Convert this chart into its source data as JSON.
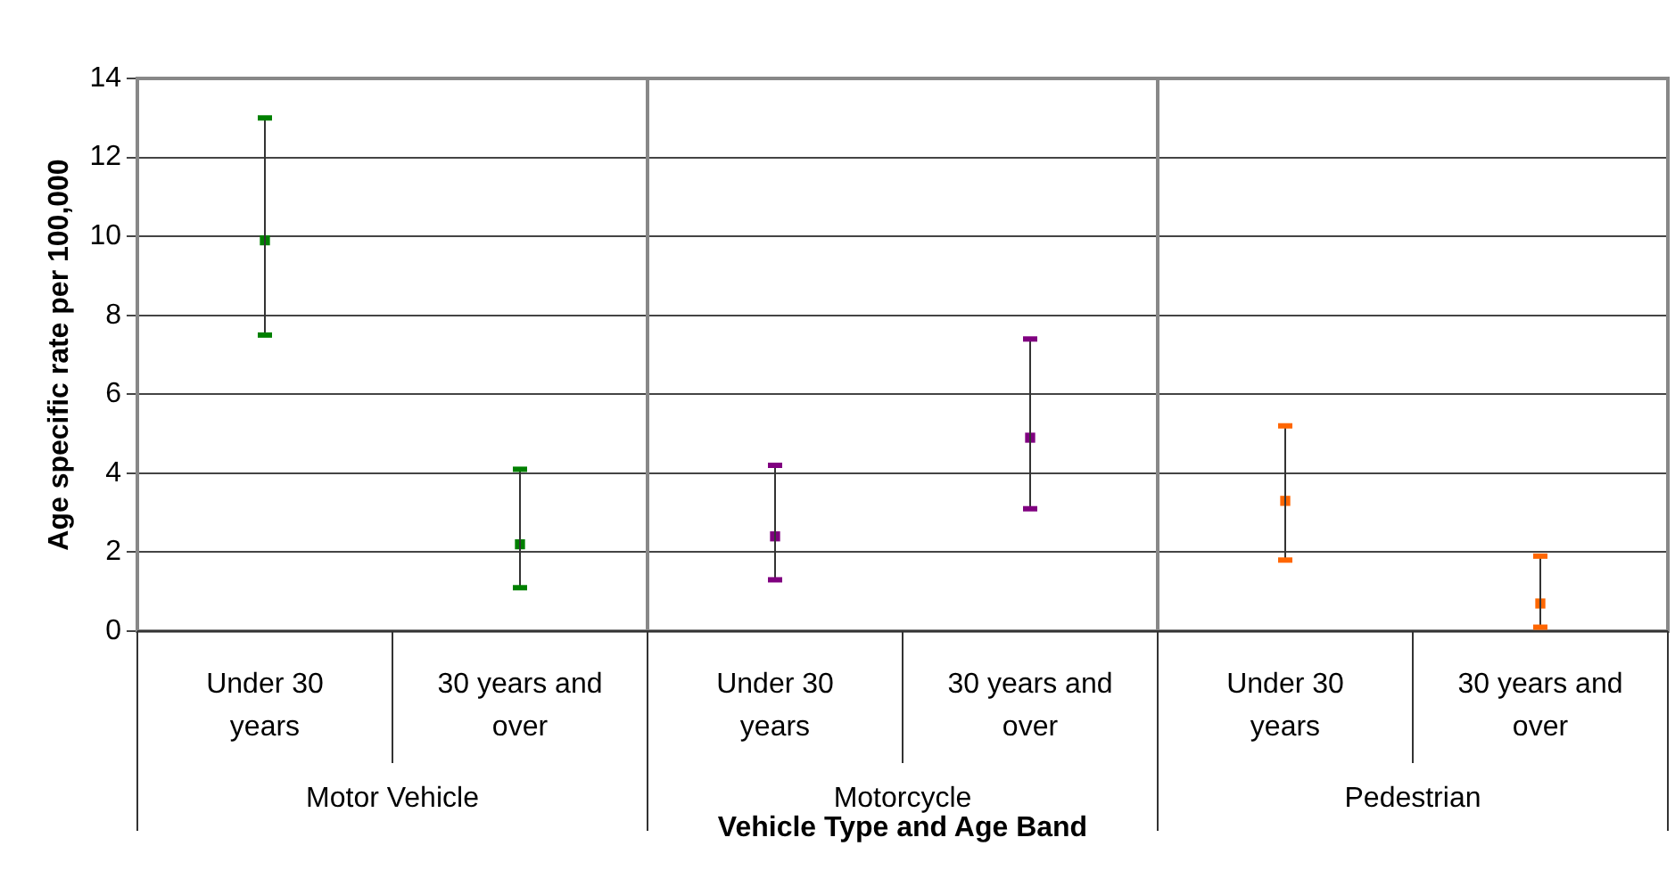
{
  "chart_data": {
    "type": "scatter",
    "xlabel": "Vehicle Type and Age Band",
    "ylabel": "Age specific rate per 100,000",
    "categories": [
      "Under 30 years",
      "30 years and over",
      "Under 30 years",
      "30 years and over",
      "Under 30 years",
      "30 years and over"
    ],
    "annotations": [
      "Motor Vehicle",
      "Motorcycle",
      "Pedestrian"
    ],
    "series": [
      {
        "colors": [
          "#008000",
          "#008000",
          "#800080",
          "#800080",
          "#ff6600",
          "#ff6600"
        ],
        "values": [
          9.9,
          2.2,
          2.4,
          4.9,
          3.3,
          0.7
        ],
        "errors": [
          [
            7.5,
            13.0
          ],
          [
            1.1,
            4.1
          ],
          [
            1.3,
            4.2
          ],
          [
            3.1,
            7.4
          ],
          [
            1.8,
            5.2
          ],
          [
            0.1,
            1.9
          ]
        ]
      }
    ],
    "ylim": [
      0,
      14
    ],
    "yticks": [
      0,
      2,
      4,
      6,
      8,
      10,
      12,
      14
    ],
    "grid": true,
    "legend": false,
    "marker": "square"
  }
}
